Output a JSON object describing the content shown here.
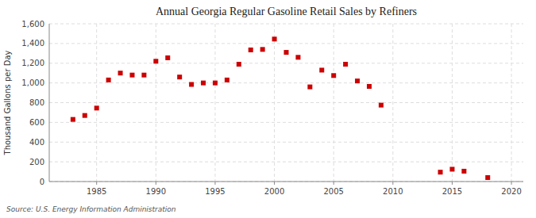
{
  "chart_data": {
    "type": "scatter",
    "title": "Annual Georgia Regular Gasoline Retail Sales by Refiners",
    "ylabel": "Thousand Gallons per Day",
    "annotations": [
      "Source: U.S. Energy Information Administration"
    ],
    "x": [
      1983,
      1984,
      1985,
      1986,
      1987,
      1988,
      1989,
      1990,
      1991,
      1992,
      1993,
      1994,
      1995,
      1996,
      1997,
      1998,
      1999,
      2000,
      2001,
      2002,
      2003,
      2004,
      2005,
      2006,
      2007,
      2008,
      2009,
      2014,
      2015,
      2016,
      2018
    ],
    "values": [
      630,
      670,
      745,
      1030,
      1100,
      1080,
      1080,
      1220,
      1255,
      1060,
      985,
      1000,
      1000,
      1030,
      1190,
      1335,
      1340,
      1445,
      1310,
      1260,
      960,
      1130,
      1075,
      1190,
      1020,
      965,
      775,
      95,
      125,
      105,
      40
    ],
    "color": "#cc0000",
    "marker": "square",
    "grid": true,
    "xlim": [
      1981,
      2021
    ],
    "ylim": [
      0,
      1600
    ],
    "xticks": [
      1985,
      1990,
      1995,
      2000,
      2005,
      2010,
      2015,
      2020
    ],
    "yticks": [
      0,
      200,
      400,
      600,
      800,
      {
        "value": 1000,
        "label": "1,000"
      },
      {
        "value": 1200,
        "label": "1,200"
      },
      {
        "value": 1400,
        "label": "1,400"
      },
      {
        "value": 1600,
        "label": "1,600"
      }
    ]
  }
}
